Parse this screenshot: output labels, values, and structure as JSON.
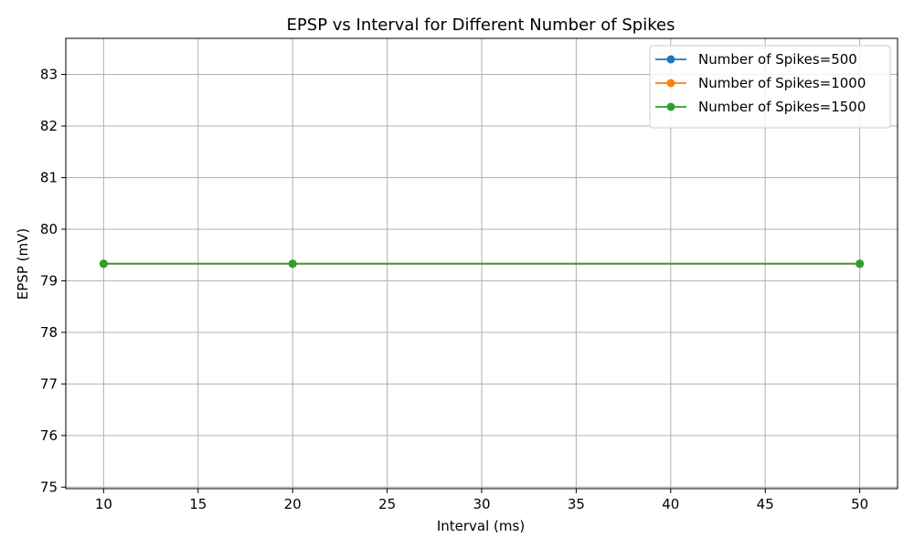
{
  "chart_data": {
    "type": "line",
    "title": "EPSP vs Interval for Different Number of Spikes",
    "xlabel": "Interval (ms)",
    "ylabel": "EPSP (mV)",
    "xlim": [
      8,
      52
    ],
    "ylim": [
      74.97,
      83.7
    ],
    "xticks": [
      10,
      15,
      20,
      25,
      30,
      35,
      40,
      45,
      50
    ],
    "yticks": [
      75,
      76,
      77,
      78,
      79,
      80,
      81,
      82,
      83
    ],
    "grid": true,
    "legend_position": "top-right",
    "series": [
      {
        "name": "Number of Spikes=500",
        "color": "#1f77b4",
        "x": [
          10,
          20,
          50
        ],
        "y": [
          79.33,
          79.33,
          79.33
        ]
      },
      {
        "name": "Number of Spikes=1000",
        "color": "#ff7f0e",
        "x": [
          10,
          20,
          50
        ],
        "y": [
          79.33,
          79.33,
          79.33
        ]
      },
      {
        "name": "Number of Spikes=1500",
        "color": "#2ca02c",
        "x": [
          10,
          20,
          50
        ],
        "y": [
          79.33,
          79.33,
          79.33
        ]
      }
    ]
  }
}
